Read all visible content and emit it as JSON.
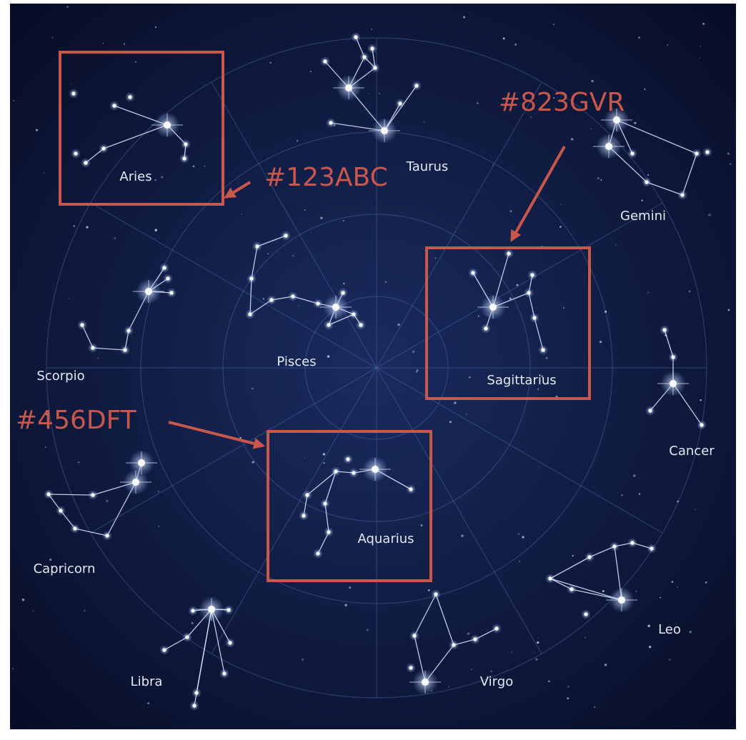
{
  "constellations": [
    "Aries",
    "Taurus",
    "Gemini",
    "Pisces",
    "Sagittarius",
    "Scorpio",
    "Cancer",
    "Capricorn",
    "Aquarius",
    "Libra",
    "Virgo",
    "Leo"
  ],
  "annotations": [
    "#123ABC",
    "#823GVR",
    "#456DFT"
  ]
}
